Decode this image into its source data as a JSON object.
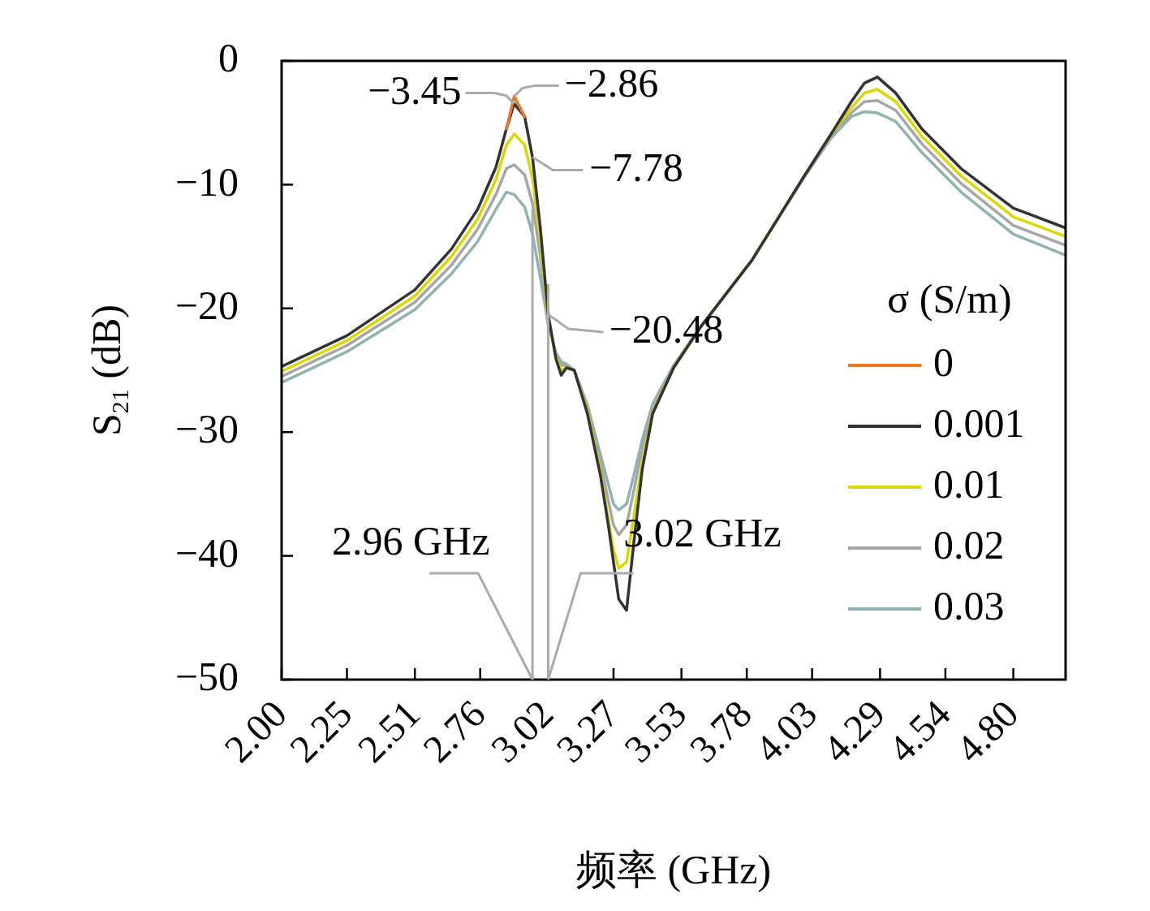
{
  "chart_data": {
    "type": "line",
    "xlabel": "频率 (GHz)",
    "ylabel": "S$_{21}$ (dB)",
    "legend_title": "σ (S/m)",
    "legend": "right",
    "grid": false,
    "marker": "none",
    "line_style": "solid",
    "xlim": [
      2,
      5
    ],
    "ylim": [
      -50,
      0
    ],
    "xticks": [
      {
        "value": 2.0,
        "label": "2.00"
      },
      {
        "value": 2.25,
        "label": "2.25"
      },
      {
        "value": 2.51,
        "label": "2.51"
      },
      {
        "value": 2.76,
        "label": "2.76"
      },
      {
        "value": 3.02,
        "label": "3.02"
      },
      {
        "value": 3.27,
        "label": "3.27"
      },
      {
        "value": 3.53,
        "label": "3.53"
      },
      {
        "value": 3.78,
        "label": "3.78"
      },
      {
        "value": 4.03,
        "label": "4.03"
      },
      {
        "value": 4.29,
        "label": "4.29"
      },
      {
        "value": 4.54,
        "label": "4.54"
      },
      {
        "value": 4.8,
        "label": "4.80"
      }
    ],
    "yticks": [
      0,
      {
        "value": -10,
        "label": "−10"
      },
      {
        "value": -20,
        "label": "−20"
      },
      {
        "value": -30,
        "label": "−30"
      },
      {
        "value": -40,
        "label": "−40"
      },
      {
        "value": -50,
        "label": "−50"
      }
    ],
    "x": [
      2.0,
      2.25,
      2.51,
      2.65,
      2.75,
      2.82,
      2.86,
      2.89,
      2.93,
      2.96,
      2.99,
      3.02,
      3.05,
      3.07,
      3.09,
      3.12,
      3.17,
      3.22,
      3.25,
      3.27,
      3.29,
      3.32,
      3.35,
      3.38,
      3.42,
      3.5,
      3.6,
      3.8,
      4.0,
      4.1,
      4.18,
      4.23,
      4.28,
      4.35,
      4.45,
      4.6,
      4.8,
      5.0
    ],
    "series": [
      {
        "name": "0",
        "color": "#e8792b",
        "values": [
          null,
          null,
          null,
          null,
          null,
          null,
          -5.5,
          -2.86,
          -4.5,
          null,
          null,
          null,
          null,
          null,
          null,
          null,
          null,
          null,
          null,
          null,
          null,
          null,
          null,
          null,
          null,
          null,
          null,
          null,
          null,
          null,
          null,
          null,
          null,
          null,
          null,
          null,
          null,
          null
        ]
      },
      {
        "name": "0.001",
        "color": "#333333",
        "values": [
          -24.7,
          -22.2,
          -18.5,
          -15.2,
          -12.0,
          -8.6,
          -5.5,
          -3.45,
          -4.5,
          -7.78,
          -13.5,
          -20.48,
          -24.1,
          -25.4,
          -24.8,
          -25.0,
          -28.5,
          -33.5,
          -37.5,
          -40.5,
          -43.5,
          -44.4,
          -38.5,
          -33.0,
          -28.5,
          -24.8,
          -21.6,
          -16.1,
          -9.3,
          -6.0,
          -3.3,
          -1.8,
          -1.3,
          -2.6,
          -5.5,
          -8.7,
          -11.9,
          -13.5
        ]
      },
      {
        "name": "0.01",
        "color": "#d9d900",
        "values": [
          -25.1,
          -22.6,
          -19.0,
          -15.8,
          -12.8,
          -9.6,
          -6.8,
          -5.9,
          -6.8,
          -9.5,
          -14.5,
          -20.8,
          -24.0,
          -25.0,
          -24.8,
          -25.0,
          -28.3,
          -33.2,
          -37.0,
          -39.5,
          -41.0,
          -40.5,
          -36.5,
          -32.5,
          -28.4,
          -24.8,
          -21.6,
          -16.1,
          -9.3,
          -6.0,
          -3.8,
          -2.6,
          -2.3,
          -3.3,
          -6.1,
          -9.3,
          -12.6,
          -14.2
        ]
      },
      {
        "name": "0.02",
        "color": "#a6a6a6",
        "values": [
          -25.5,
          -23.0,
          -19.5,
          -16.5,
          -13.6,
          -10.8,
          -8.7,
          -8.4,
          -9.2,
          -11.5,
          -15.8,
          -21.0,
          -23.8,
          -24.6,
          -24.6,
          -25.0,
          -28.0,
          -32.5,
          -35.5,
          -37.5,
          -38.3,
          -37.5,
          -34.5,
          -31.3,
          -28.0,
          -24.7,
          -21.6,
          -16.1,
          -9.3,
          -6.1,
          -4.2,
          -3.3,
          -3.2,
          -4.0,
          -6.7,
          -9.9,
          -13.3,
          -14.9
        ]
      },
      {
        "name": "0.03",
        "color": "#8fb3b3",
        "values": [
          -26.0,
          -23.5,
          -20.1,
          -17.2,
          -14.6,
          -12.0,
          -10.6,
          -10.8,
          -11.8,
          -14.0,
          -17.5,
          -21.3,
          -23.6,
          -24.3,
          -24.5,
          -25.0,
          -27.8,
          -31.8,
          -34.2,
          -35.8,
          -36.3,
          -35.8,
          -33.3,
          -30.6,
          -27.7,
          -24.6,
          -21.6,
          -16.1,
          -9.4,
          -6.3,
          -4.5,
          -4.1,
          -4.2,
          -4.9,
          -7.4,
          -10.6,
          -14.0,
          -15.7
        ]
      }
    ],
    "annotations": [
      {
        "text": "−3.45",
        "x": 2.89,
        "y": -3.45
      },
      {
        "text": "−2.86",
        "x": 2.89,
        "y": -2.86
      },
      {
        "text": "−7.78",
        "x": 2.96,
        "y": -7.78
      },
      {
        "text": "−20.48",
        "x": 3.02,
        "y": -20.48
      }
    ],
    "ref_lines": [
      {
        "axis": "x",
        "value": 2.96,
        "label": "2.96 GHz",
        "color": "#aaaaaa"
      },
      {
        "axis": "x",
        "value": 3.02,
        "label": "3.02 GHz",
        "color": "#aaaaaa"
      }
    ]
  }
}
